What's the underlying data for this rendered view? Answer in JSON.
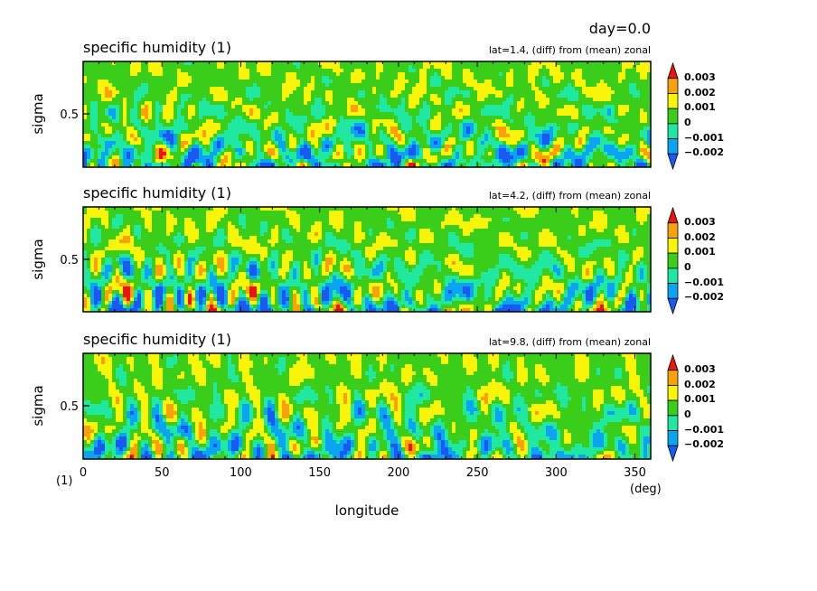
{
  "header": {
    "day_label": "day=0.0"
  },
  "palette": {
    "red": "#e8160c",
    "orange": "#f9a10a",
    "yellow": "#f8f40a",
    "green": "#3acd1a",
    "aqua": "#20e8a0",
    "lightblue": "#0aa4f2",
    "blue": "#1a5af0"
  },
  "colorbar_levels": [
    "0.003",
    "0.002",
    "0.001",
    "0",
    "−0.001",
    "−0.002"
  ],
  "chart_data": [
    {
      "type": "heatmap",
      "title": "specific humidity (1)",
      "subtitle": "lat=1.4, (diff) from (mean) zonal",
      "ylabel": "sigma",
      "y_ticks": [
        "0.5"
      ],
      "xlim": [
        0,
        360
      ],
      "ylim": [
        1,
        0
      ],
      "levels": [
        -0.002,
        -0.001,
        0,
        0.001,
        0.002,
        0.003
      ],
      "seed": 11
    },
    {
      "type": "heatmap",
      "title": "specific humidity (1)",
      "subtitle": "lat=4.2, (diff) from (mean) zonal",
      "ylabel": "sigma",
      "y_ticks": [
        "0.5"
      ],
      "xlim": [
        0,
        360
      ],
      "ylim": [
        1,
        0
      ],
      "levels": [
        -0.002,
        -0.001,
        0,
        0.001,
        0.002,
        0.003
      ],
      "seed": 23
    },
    {
      "type": "heatmap",
      "title": "specific humidity (1)",
      "subtitle": "lat=9.8, (diff) from (mean) zonal",
      "ylabel": "sigma",
      "y_ticks": [
        "0.5"
      ],
      "xlim": [
        0,
        360
      ],
      "ylim": [
        1,
        0
      ],
      "levels": [
        -0.002,
        -0.001,
        0,
        0.001,
        0.002,
        0.003
      ],
      "seed": 37,
      "x_ticks": [
        "0",
        "50",
        "100",
        "150",
        "200",
        "250",
        "300",
        "350"
      ],
      "xlabel": "longitude",
      "x_unit": "(deg)",
      "y_unit": "(1)"
    }
  ]
}
